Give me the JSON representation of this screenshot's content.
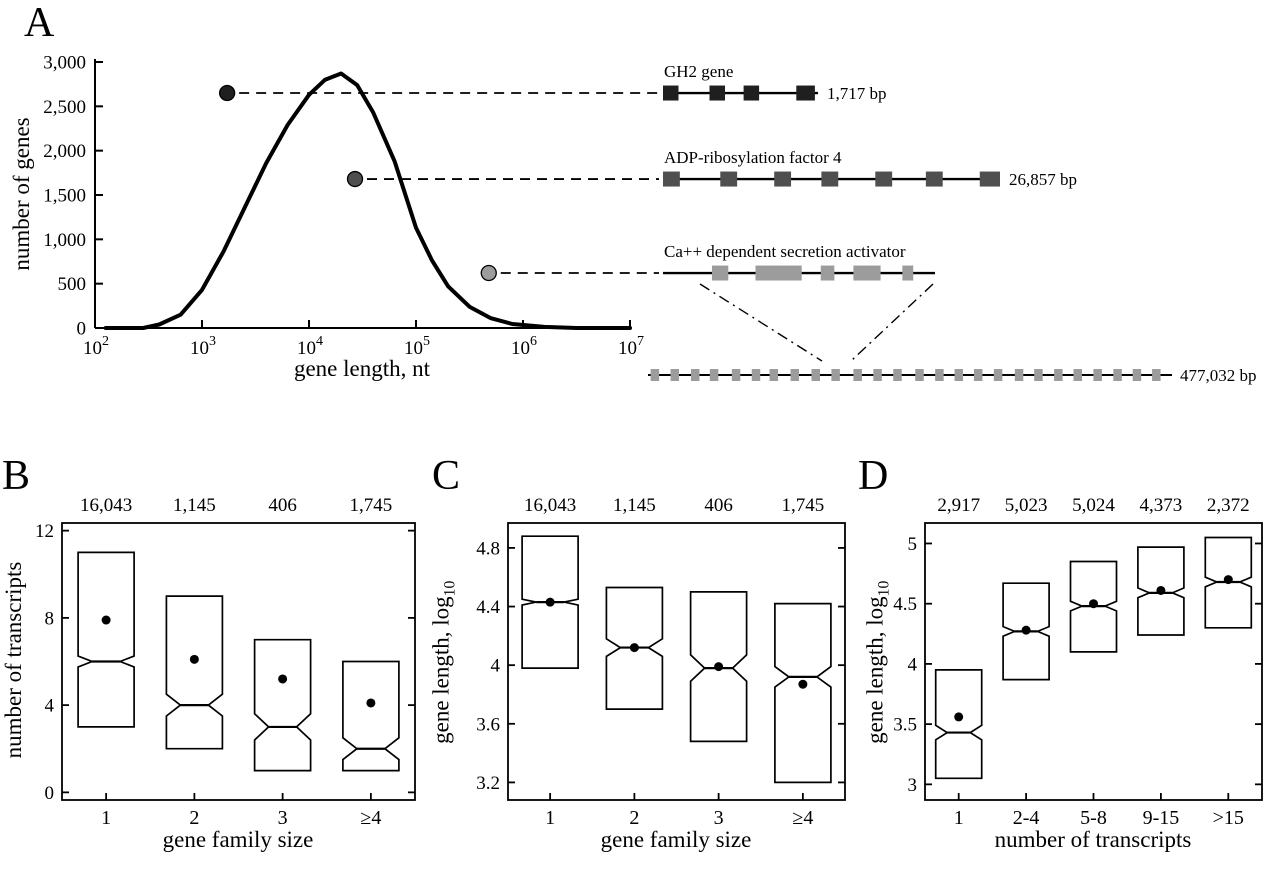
{
  "figure": {
    "background": "#ffffff",
    "ink": "#000000"
  },
  "panels": {
    "A": {
      "letter": "A"
    },
    "B": {
      "letter": "B"
    },
    "C": {
      "letter": "C"
    },
    "D": {
      "letter": "D"
    }
  },
  "chart_data": [
    {
      "id": "A",
      "type": "line",
      "xlabel": "gene length, nt",
      "ylabel": "number of genes",
      "x_scale": "log10",
      "xlim_log10": [
        2,
        7
      ],
      "x_tick_exponents": [
        2,
        3,
        4,
        5,
        6,
        7
      ],
      "ylim": [
        0,
        3000
      ],
      "y_ticks": [
        0,
        500,
        1000,
        1500,
        2000,
        2500,
        3000
      ],
      "y_tick_labels": [
        "0",
        "500",
        "1,000",
        "1,500",
        "2,000",
        "2,500",
        "3,000"
      ],
      "line_color": "#000000",
      "line_width": 4,
      "points": [
        [
          2.1,
          0
        ],
        [
          2.45,
          0
        ],
        [
          2.6,
          40
        ],
        [
          2.8,
          150
        ],
        [
          3.0,
          430
        ],
        [
          3.2,
          860
        ],
        [
          3.4,
          1360
        ],
        [
          3.6,
          1860
        ],
        [
          3.8,
          2290
        ],
        [
          4.0,
          2630
        ],
        [
          4.15,
          2800
        ],
        [
          4.3,
          2870
        ],
        [
          4.45,
          2740
        ],
        [
          4.6,
          2430
        ],
        [
          4.8,
          1880
        ],
        [
          5.0,
          1130
        ],
        [
          5.15,
          760
        ],
        [
          5.3,
          470
        ],
        [
          5.5,
          240
        ],
        [
          5.7,
          110
        ],
        [
          5.9,
          45
        ],
        [
          6.2,
          12
        ],
        [
          6.5,
          0
        ],
        [
          7.0,
          0
        ]
      ],
      "example_genes": [
        {
          "name": "GH2 gene",
          "length_bp_label": "1,717 bp",
          "dot_x_log10": 3.235,
          "dot_y": 2650,
          "shade": "#1f1f1f",
          "exons": [
            [
              0.0,
              0.1
            ],
            [
              0.3,
              0.1
            ],
            [
              0.52,
              0.1
            ],
            [
              0.86,
              0.12
            ]
          ]
        },
        {
          "name": "ADP-ribosylation factor 4",
          "length_bp_label": "26,857 bp",
          "dot_x_log10": 4.43,
          "dot_y": 1680,
          "shade": "#4f4f4f",
          "exons": [
            [
              0.0,
              0.05
            ],
            [
              0.17,
              0.05
            ],
            [
              0.33,
              0.05
            ],
            [
              0.47,
              0.05
            ],
            [
              0.63,
              0.05
            ],
            [
              0.78,
              0.05
            ],
            [
              0.94,
              0.06
            ]
          ]
        },
        {
          "name": "Ca++ dependent secretion activator",
          "length_bp_label": "477,032 bp",
          "dot_x_log10": 5.68,
          "dot_y": 620,
          "shade": "#9c9c9c",
          "exons": [
            [
              0.18,
              0.06
            ],
            [
              0.34,
              0.17
            ],
            [
              0.58,
              0.05
            ],
            [
              0.7,
              0.1
            ],
            [
              0.88,
              0.04
            ]
          ],
          "expanded_exon_starts": [
            0.005,
            0.043,
            0.082,
            0.118,
            0.16,
            0.198,
            0.232,
            0.272,
            0.312,
            0.35,
            0.392,
            0.43,
            0.468,
            0.51,
            0.548,
            0.585,
            0.622,
            0.66,
            0.7,
            0.737,
            0.775,
            0.812,
            0.85,
            0.888,
            0.925,
            0.962
          ]
        }
      ]
    },
    {
      "id": "B",
      "type": "boxplot",
      "xlabel": "gene family size",
      "ylabel": "number of transcripts",
      "ylabel_sub": "",
      "categories": [
        "1",
        "2",
        "3",
        "≥4"
      ],
      "counts": [
        "16,043",
        "1,145",
        "406",
        "1,745"
      ],
      "ylim": [
        -0.35,
        12.35
      ],
      "y_ticks": [
        0,
        4,
        8,
        12
      ],
      "y_tick_labels": [
        "0",
        "4",
        "8",
        "12"
      ],
      "boxes": [
        {
          "q1": 3,
          "median": 6,
          "q3": 11,
          "notch": 0.25,
          "mean": 7.9
        },
        {
          "q1": 2,
          "median": 4,
          "q3": 9,
          "notch": 0.5,
          "mean": 6.1
        },
        {
          "q1": 1,
          "median": 3,
          "q3": 7,
          "notch": 0.6,
          "mean": 5.2
        },
        {
          "q1": 1,
          "median": 2,
          "q3": 6,
          "notch": 0.5,
          "mean": 4.1
        }
      ]
    },
    {
      "id": "C",
      "type": "boxplot",
      "xlabel": "gene family size",
      "ylabel": "gene length, log",
      "ylabel_sub": "10",
      "categories": [
        "1",
        "2",
        "3",
        "≥4"
      ],
      "counts": [
        "16,043",
        "1,145",
        "406",
        "1,745"
      ],
      "ylim": [
        3.08,
        4.97
      ],
      "y_ticks": [
        3.2,
        3.6,
        4,
        4.4,
        4.8
      ],
      "y_tick_labels": [
        "3.2",
        "3.6",
        "4",
        "4.4",
        "4.8"
      ],
      "boxes": [
        {
          "q1": 3.98,
          "median": 4.43,
          "q3": 4.88,
          "notch": 0.02,
          "mean": 4.43
        },
        {
          "q1": 3.7,
          "median": 4.12,
          "q3": 4.53,
          "notch": 0.06,
          "mean": 4.12
        },
        {
          "q1": 3.48,
          "median": 3.98,
          "q3": 4.5,
          "notch": 0.09,
          "mean": 3.99
        },
        {
          "q1": 3.2,
          "median": 3.92,
          "q3": 4.42,
          "notch": 0.07,
          "mean": 3.87
        }
      ]
    },
    {
      "id": "D",
      "type": "boxplot",
      "xlabel": "number of transcripts",
      "ylabel": "gene length, log",
      "ylabel_sub": "10",
      "categories": [
        "1",
        "2-4",
        "5-8",
        "9-15",
        ">15"
      ],
      "counts": [
        "2,917",
        "5,023",
        "5,024",
        "4,373",
        "2,372"
      ],
      "ylim": [
        2.87,
        5.17
      ],
      "y_ticks": [
        3,
        3.5,
        4,
        4.5,
        5
      ],
      "y_tick_labels": [
        "3",
        "3.5",
        "4",
        "4.5",
        "5"
      ],
      "boxes": [
        {
          "q1": 3.05,
          "median": 3.43,
          "q3": 3.95,
          "notch": 0.06,
          "mean": 3.56
        },
        {
          "q1": 3.87,
          "median": 4.27,
          "q3": 4.67,
          "notch": 0.04,
          "mean": 4.28
        },
        {
          "q1": 4.1,
          "median": 4.48,
          "q3": 4.85,
          "notch": 0.04,
          "mean": 4.5
        },
        {
          "q1": 4.24,
          "median": 4.59,
          "q3": 4.97,
          "notch": 0.04,
          "mean": 4.61
        },
        {
          "q1": 4.3,
          "median": 4.68,
          "q3": 5.05,
          "notch": 0.04,
          "mean": 4.7
        }
      ]
    }
  ]
}
